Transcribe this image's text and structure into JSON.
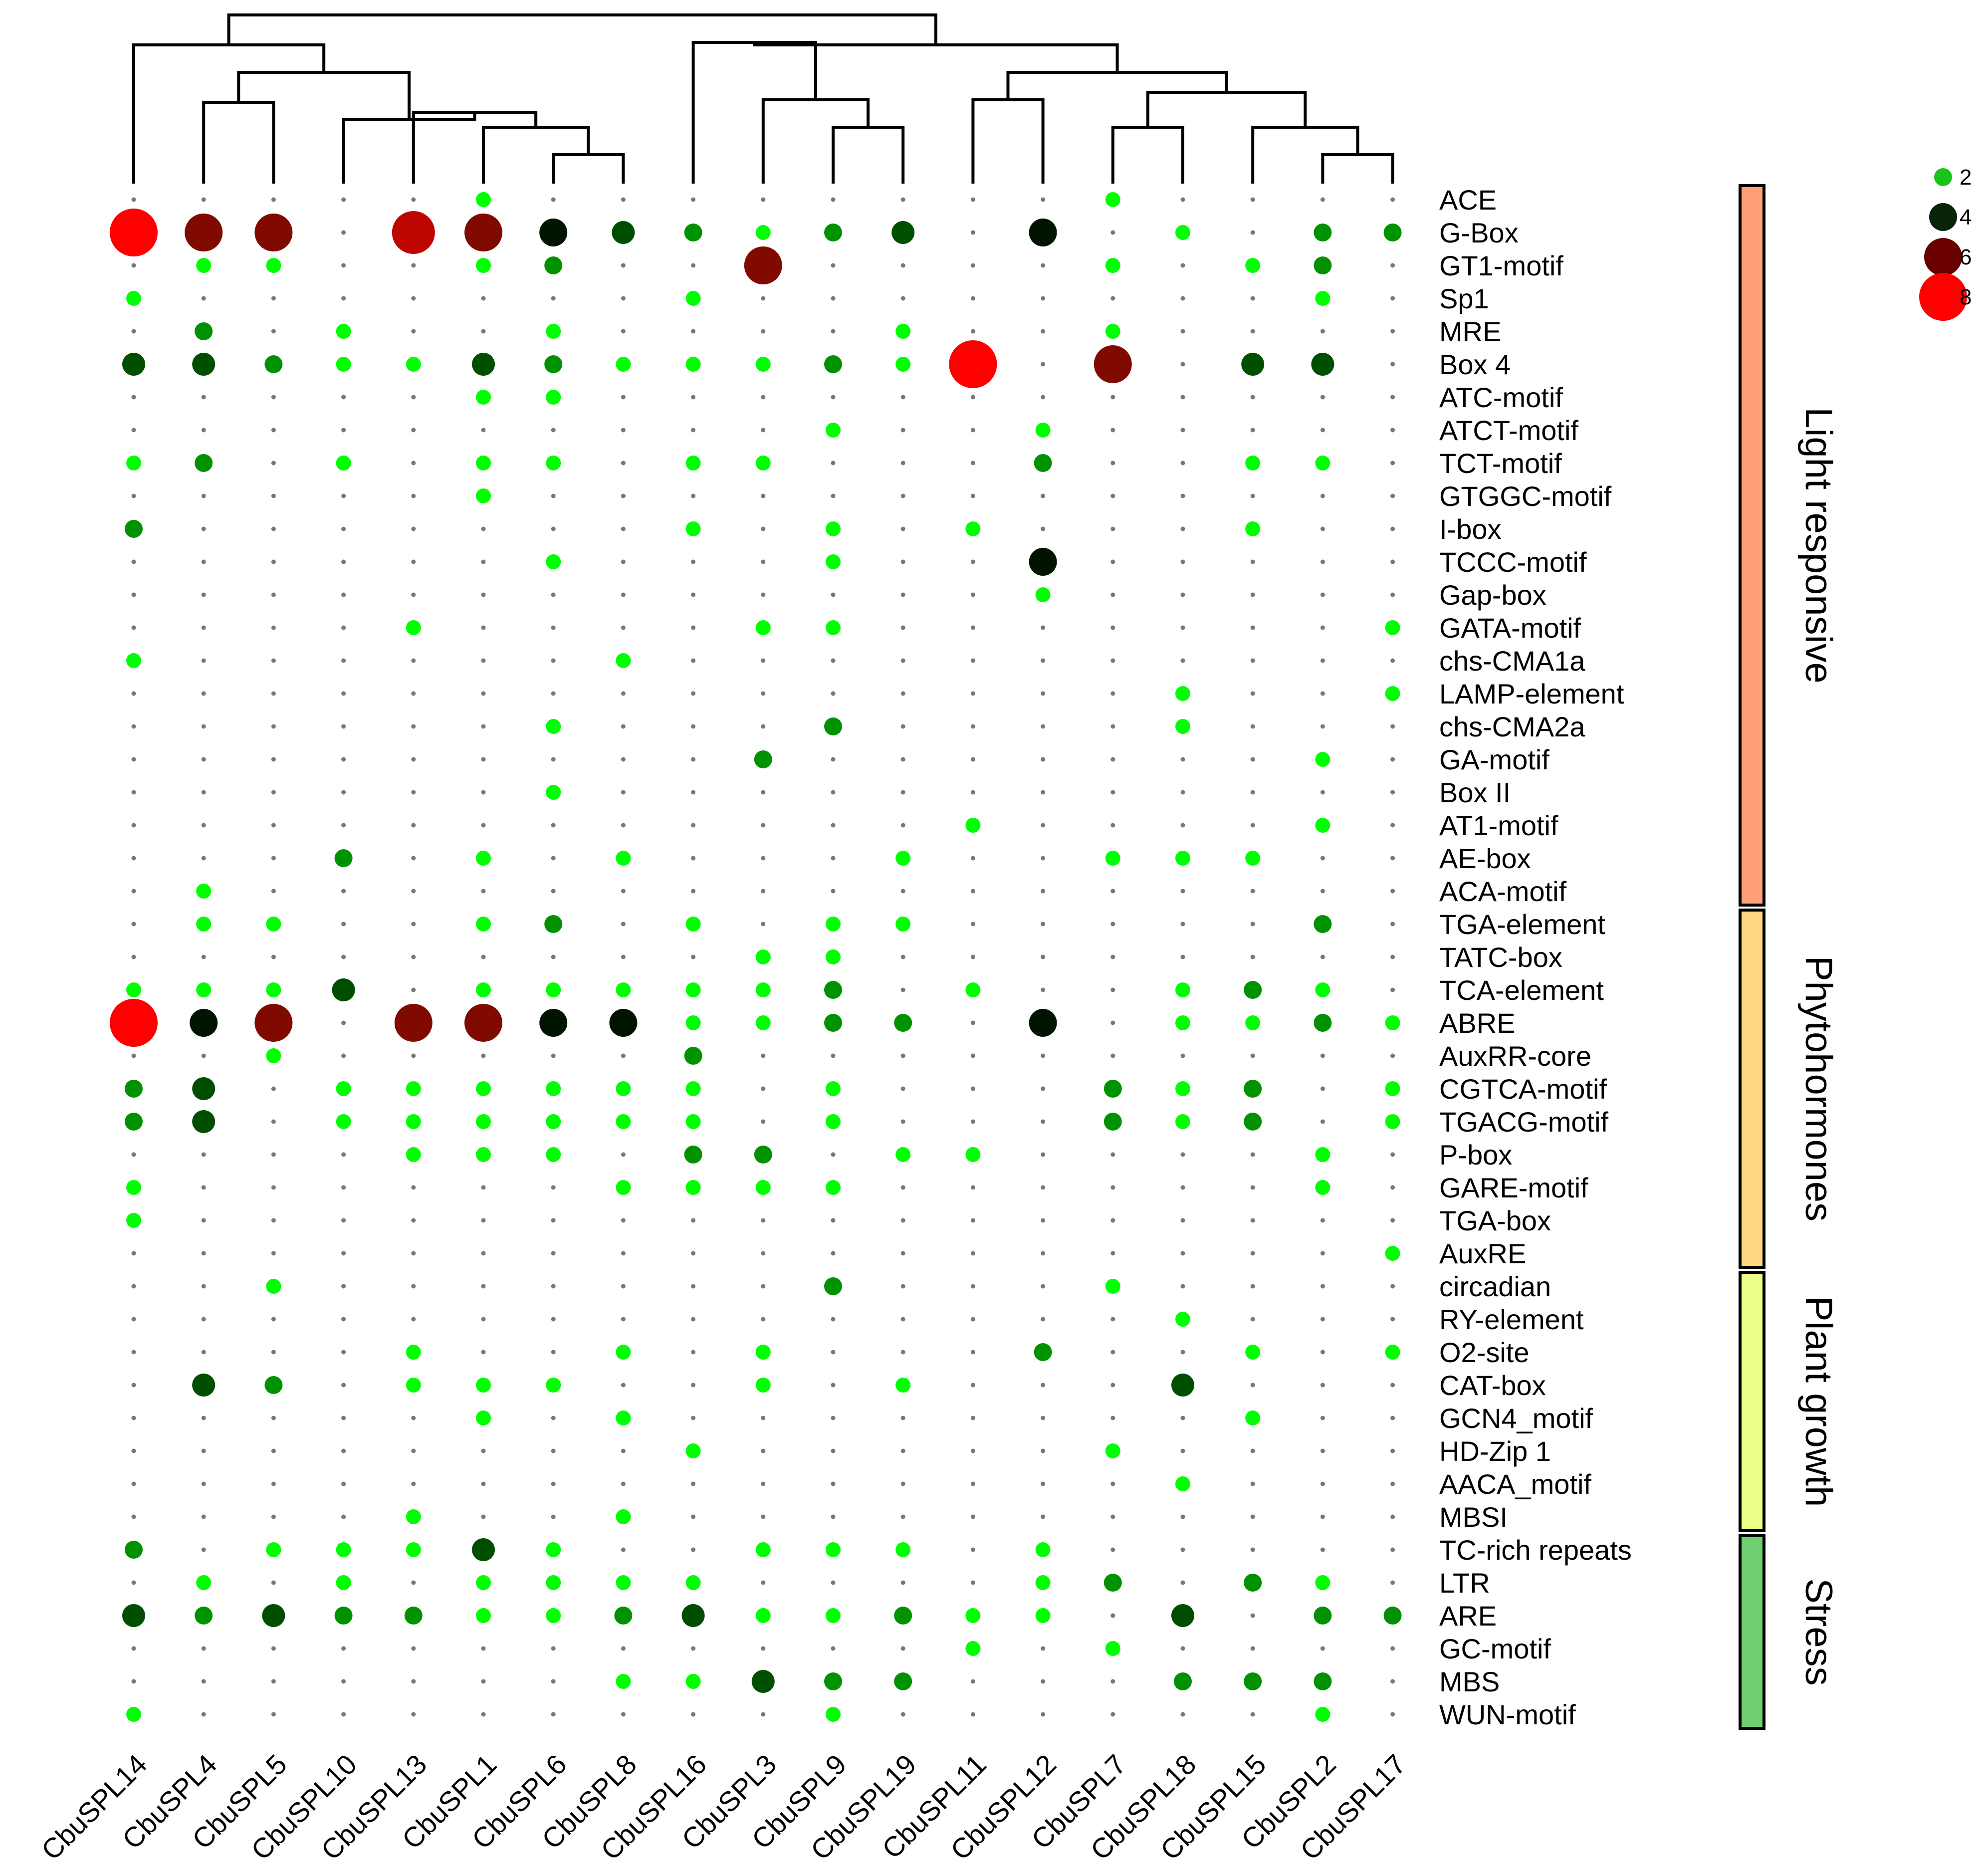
{
  "chart_data": {
    "type": "dot-heatmap",
    "title": "",
    "genes": [
      "CbuSPL14",
      "CbuSPL4",
      "CbuSPL5",
      "CbuSPL10",
      "CbuSPL13",
      "CbuSPL1",
      "CbuSPL6",
      "CbuSPL8",
      "CbuSPL16",
      "CbuSPL3",
      "CbuSPL9",
      "CbuSPL19",
      "CbuSPL11",
      "CbuSPL12",
      "CbuSPL7",
      "CbuSPL18",
      "CbuSPL15",
      "CbuSPL2",
      "CbuSPL17"
    ],
    "motifs": [
      "ACE",
      "G-Box",
      "GT1-motif",
      "Sp1",
      "MRE",
      "Box 4",
      "ATC-motif",
      "ATCT-motif",
      "TCT-motif",
      "GTGGC-motif",
      "I-box",
      "TCCC-motif",
      "Gap-box",
      "GATA-motif",
      "chs-CMA1a",
      "LAMP-element",
      "chs-CMA2a",
      "GA-motif",
      "Box II",
      "AT1-motif",
      "AE-box",
      "ACA-motif",
      "TGA-element",
      "TATC-box",
      "TCA-element",
      "ABRE",
      "AuxRR-core",
      "CGTCA-motif",
      "TGACG-motif",
      "P-box",
      "GARE-motif",
      "TGA-box",
      "AuxRE",
      "circadian",
      "RY-element",
      "O2-site",
      "CAT-box",
      "GCN4_motif",
      "HD-Zip 1",
      "AACA_motif",
      "MBSI",
      "TC-rich repeats",
      "LTR",
      "ARE",
      "GC-motif",
      "MBS",
      "WUN-motif"
    ],
    "values": [
      [
        0,
        0,
        0,
        0,
        0,
        1,
        0,
        0,
        0,
        0,
        0,
        0,
        0,
        0,
        1,
        0,
        0,
        0,
        0
      ],
      [
        8,
        6,
        6,
        0,
        7,
        6,
        4,
        3,
        2,
        1,
        2,
        3,
        0,
        4,
        0,
        1,
        0,
        2,
        2
      ],
      [
        0,
        1,
        1,
        0,
        0,
        1,
        2,
        0,
        0,
        6,
        0,
        0,
        0,
        0,
        1,
        0,
        1,
        2,
        0
      ],
      [
        1,
        0,
        0,
        0,
        0,
        0,
        0,
        0,
        1,
        0,
        0,
        0,
        0,
        0,
        0,
        0,
        0,
        1,
        0
      ],
      [
        0,
        2,
        0,
        1,
        0,
        0,
        1,
        0,
        0,
        0,
        0,
        1,
        0,
        0,
        1,
        0,
        0,
        0,
        0
      ],
      [
        3,
        3,
        2,
        1,
        1,
        3,
        2,
        1,
        1,
        1,
        2,
        1,
        8,
        0,
        6,
        0,
        3,
        3,
        0
      ],
      [
        0,
        0,
        0,
        0,
        0,
        1,
        1,
        0,
        0,
        0,
        0,
        0,
        0,
        0,
        0,
        0,
        0,
        0,
        0
      ],
      [
        0,
        0,
        0,
        0,
        0,
        0,
        0,
        0,
        0,
        0,
        1,
        0,
        0,
        1,
        0,
        0,
        0,
        0,
        0
      ],
      [
        1,
        2,
        0,
        1,
        0,
        1,
        1,
        0,
        1,
        1,
        0,
        0,
        0,
        2,
        0,
        0,
        1,
        1,
        0
      ],
      [
        0,
        0,
        0,
        0,
        0,
        1,
        0,
        0,
        0,
        0,
        0,
        0,
        0,
        0,
        0,
        0,
        0,
        0,
        0
      ],
      [
        2,
        0,
        0,
        0,
        0,
        0,
        0,
        0,
        1,
        0,
        1,
        0,
        1,
        0,
        0,
        0,
        1,
        0,
        0
      ],
      [
        0,
        0,
        0,
        0,
        0,
        0,
        1,
        0,
        0,
        0,
        1,
        0,
        0,
        4,
        0,
        0,
        0,
        0,
        0
      ],
      [
        0,
        0,
        0,
        0,
        0,
        0,
        0,
        0,
        0,
        0,
        0,
        0,
        0,
        1,
        0,
        0,
        0,
        0,
        0
      ],
      [
        0,
        0,
        0,
        0,
        1,
        0,
        0,
        0,
        0,
        1,
        1,
        0,
        0,
        0,
        0,
        0,
        0,
        0,
        1
      ],
      [
        1,
        0,
        0,
        0,
        0,
        0,
        0,
        1,
        0,
        0,
        0,
        0,
        0,
        0,
        0,
        0,
        0,
        0,
        0
      ],
      [
        0,
        0,
        0,
        0,
        0,
        0,
        0,
        0,
        0,
        0,
        0,
        0,
        0,
        0,
        0,
        1,
        0,
        0,
        1
      ],
      [
        0,
        0,
        0,
        0,
        0,
        0,
        1,
        0,
        0,
        0,
        2,
        0,
        0,
        0,
        0,
        1,
        0,
        0,
        0
      ],
      [
        0,
        0,
        0,
        0,
        0,
        0,
        0,
        0,
        0,
        2,
        0,
        0,
        0,
        0,
        0,
        0,
        0,
        1,
        0
      ],
      [
        0,
        0,
        0,
        0,
        0,
        0,
        1,
        0,
        0,
        0,
        0,
        0,
        0,
        0,
        0,
        0,
        0,
        0,
        0
      ],
      [
        0,
        0,
        0,
        0,
        0,
        0,
        0,
        0,
        0,
        0,
        0,
        0,
        1,
        0,
        0,
        0,
        0,
        1,
        0
      ],
      [
        0,
        0,
        0,
        2,
        0,
        1,
        0,
        1,
        0,
        0,
        0,
        1,
        0,
        0,
        1,
        1,
        1,
        0,
        0
      ],
      [
        0,
        1,
        0,
        0,
        0,
        0,
        0,
        0,
        0,
        0,
        0,
        0,
        0,
        0,
        0,
        0,
        0,
        0,
        0
      ],
      [
        0,
        1,
        1,
        0,
        0,
        1,
        2,
        0,
        1,
        0,
        1,
        1,
        0,
        0,
        0,
        0,
        0,
        2,
        0
      ],
      [
        0,
        0,
        0,
        0,
        0,
        0,
        0,
        0,
        0,
        1,
        1,
        0,
        0,
        0,
        0,
        0,
        0,
        0,
        0
      ],
      [
        1,
        1,
        1,
        3,
        0,
        1,
        1,
        1,
        1,
        1,
        2,
        0,
        1,
        0,
        0,
        1,
        2,
        1,
        0
      ],
      [
        8,
        4,
        6,
        0,
        6,
        6,
        4,
        4,
        1,
        1,
        2,
        2,
        0,
        4,
        0,
        1,
        1,
        2,
        1
      ],
      [
        0,
        0,
        1,
        0,
        0,
        0,
        0,
        0,
        2,
        0,
        0,
        0,
        0,
        0,
        0,
        0,
        0,
        0,
        0
      ],
      [
        2,
        3,
        0,
        1,
        1,
        1,
        1,
        1,
        1,
        0,
        1,
        0,
        0,
        0,
        2,
        1,
        2,
        0,
        1
      ],
      [
        2,
        3,
        0,
        1,
        1,
        1,
        1,
        1,
        1,
        0,
        1,
        0,
        0,
        0,
        2,
        1,
        2,
        0,
        1
      ],
      [
        0,
        0,
        0,
        0,
        1,
        1,
        1,
        0,
        2,
        2,
        0,
        1,
        1,
        0,
        0,
        0,
        0,
        1,
        0
      ],
      [
        1,
        0,
        0,
        0,
        0,
        0,
        0,
        1,
        1,
        1,
        1,
        0,
        0,
        0,
        0,
        0,
        0,
        1,
        0
      ],
      [
        1,
        0,
        0,
        0,
        0,
        0,
        0,
        0,
        0,
        0,
        0,
        0,
        0,
        0,
        0,
        0,
        0,
        0,
        0
      ],
      [
        0,
        0,
        0,
        0,
        0,
        0,
        0,
        0,
        0,
        0,
        0,
        0,
        0,
        0,
        0,
        0,
        0,
        0,
        1
      ],
      [
        0,
        0,
        1,
        0,
        0,
        0,
        0,
        0,
        0,
        0,
        2,
        0,
        0,
        0,
        1,
        0,
        0,
        0,
        0
      ],
      [
        0,
        0,
        0,
        0,
        0,
        0,
        0,
        0,
        0,
        0,
        0,
        0,
        0,
        0,
        0,
        1,
        0,
        0,
        0
      ],
      [
        0,
        0,
        0,
        0,
        1,
        0,
        0,
        1,
        0,
        1,
        0,
        0,
        0,
        2,
        0,
        0,
        1,
        0,
        1
      ],
      [
        0,
        3,
        2,
        0,
        1,
        1,
        1,
        0,
        0,
        1,
        0,
        1,
        0,
        0,
        0,
        3,
        0,
        0,
        0
      ],
      [
        0,
        0,
        0,
        0,
        0,
        1,
        0,
        1,
        0,
        0,
        0,
        0,
        0,
        0,
        0,
        0,
        1,
        0,
        0
      ],
      [
        0,
        0,
        0,
        0,
        0,
        0,
        0,
        0,
        1,
        0,
        0,
        0,
        0,
        0,
        1,
        0,
        0,
        0,
        0
      ],
      [
        0,
        0,
        0,
        0,
        0,
        0,
        0,
        0,
        0,
        0,
        0,
        0,
        0,
        0,
        0,
        1,
        0,
        0,
        0
      ],
      [
        0,
        0,
        0,
        0,
        1,
        0,
        0,
        1,
        0,
        0,
        0,
        0,
        0,
        0,
        0,
        0,
        0,
        0,
        0
      ],
      [
        2,
        0,
        1,
        1,
        1,
        3,
        1,
        0,
        0,
        1,
        1,
        1,
        0,
        1,
        0,
        0,
        0,
        0,
        0
      ],
      [
        0,
        1,
        0,
        1,
        0,
        1,
        1,
        1,
        1,
        0,
        0,
        0,
        0,
        1,
        2,
        0,
        2,
        1,
        0
      ],
      [
        3,
        2,
        3,
        2,
        2,
        1,
        1,
        2,
        3,
        1,
        1,
        2,
        1,
        1,
        0,
        3,
        0,
        2,
        2
      ],
      [
        0,
        0,
        0,
        0,
        0,
        0,
        0,
        0,
        0,
        0,
        0,
        0,
        1,
        0,
        1,
        0,
        0,
        0,
        0
      ],
      [
        0,
        0,
        0,
        0,
        0,
        0,
        0,
        1,
        1,
        3,
        2,
        2,
        0,
        0,
        0,
        2,
        2,
        2,
        0
      ],
      [
        1,
        0,
        0,
        0,
        0,
        0,
        0,
        0,
        0,
        0,
        1,
        0,
        0,
        0,
        0,
        0,
        0,
        1,
        0
      ]
    ],
    "groups": [
      {
        "name": "Light responsive",
        "color": "#FFA07A",
        "start": 0,
        "end": 21
      },
      {
        "name": "Phytohormones",
        "color": "#FFD884",
        "start": 22,
        "end": 32
      },
      {
        "name": "Plant growth",
        "color": "#EEFF88",
        "start": 33,
        "end": 40
      },
      {
        "name": "Stress",
        "color": "#6FD06F",
        "start": 41,
        "end": 46
      }
    ],
    "legend": {
      "title": "",
      "entries": [
        {
          "label": "2",
          "value": 2,
          "color": "#19C419"
        },
        {
          "label": "4",
          "value": 4,
          "color": "#092309"
        },
        {
          "label": "6",
          "value": 6,
          "color": "#6B0000"
        },
        {
          "label": "8",
          "value": 8,
          "color": "#FF0000"
        }
      ]
    },
    "color_scale": {
      "low": "#00FF00",
      "mid": "#000000",
      "high": "#FF0000"
    }
  }
}
